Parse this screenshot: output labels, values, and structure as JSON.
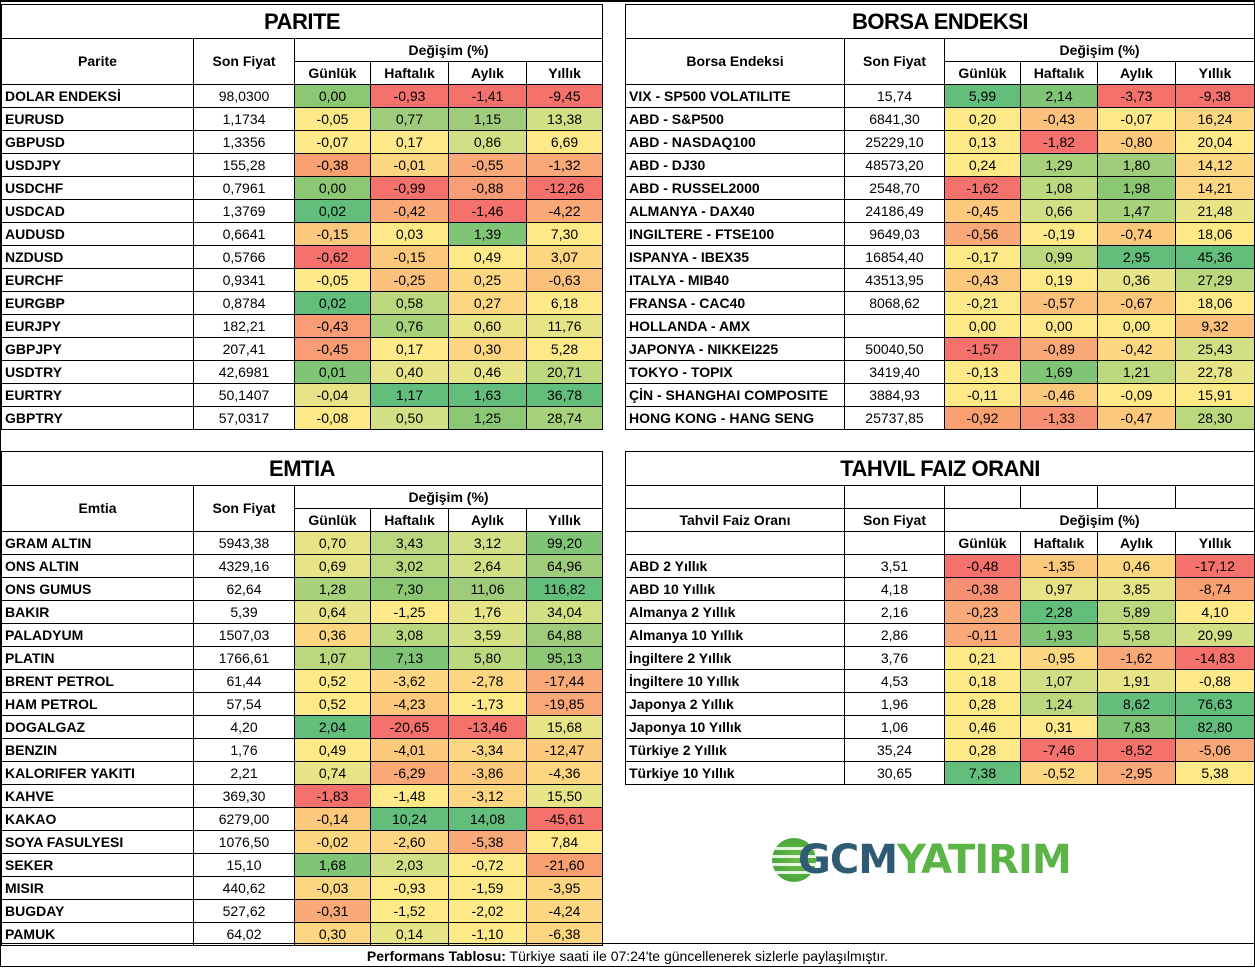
{
  "headers": {
    "son_fiyat": "Son Fiyat",
    "degisim": "Değişim (%)",
    "gunluk": "Günlük",
    "haftalik": "Haftalık",
    "aylik": "Aylık",
    "yillik": "Yıllık"
  },
  "parite": {
    "title": "PARITE",
    "col_name": "Parite",
    "rows": [
      {
        "name": "DOLAR ENDEKSİ",
        "price": "98,0300",
        "d": "0,00",
        "w": "-0,93",
        "m": "-1,41",
        "y": "-9,45",
        "c": [
          "#8cc874",
          "#f4716c",
          "#f4716c",
          "#f4716c"
        ]
      },
      {
        "name": "EURUSD",
        "price": "1,1734",
        "d": "-0,05",
        "w": "0,77",
        "m": "1,15",
        "y": "13,38",
        "c": [
          "#fde988",
          "#9fcc7a",
          "#9fcc7a",
          "#d3df84"
        ]
      },
      {
        "name": "GBPUSD",
        "price": "1,3356",
        "d": "-0,07",
        "w": "0,17",
        "m": "0,86",
        "y": "6,69",
        "c": [
          "#fde988",
          "#fde988",
          "#d3df84",
          "#fde988"
        ]
      },
      {
        "name": "USDJPY",
        "price": "155,28",
        "d": "-0,38",
        "w": "-0,01",
        "m": "-0,55",
        "y": "-1,32",
        "c": [
          "#f9a070",
          "#fcd681",
          "#f9a878",
          "#f9a878"
        ]
      },
      {
        "name": "USDCHF",
        "price": "0,7961",
        "d": "0,00",
        "w": "-0,99",
        "m": "-0,88",
        "y": "-12,26",
        "c": [
          "#8cc874",
          "#f4716c",
          "#f79c75",
          "#f4716c"
        ]
      },
      {
        "name": "USDCAD",
        "price": "1,3769",
        "d": "0,02",
        "w": "-0,42",
        "m": "-1,46",
        "y": "-4,22",
        "c": [
          "#63be7b",
          "#f9a878",
          "#f4716c",
          "#f9a878"
        ]
      },
      {
        "name": "AUDUSD",
        "price": "0,6641",
        "d": "-0,15",
        "w": "0,03",
        "m": "1,39",
        "y": "7,30",
        "c": [
          "#fbc87c",
          "#fde988",
          "#7fc575",
          "#fde988"
        ]
      },
      {
        "name": "NZDUSD",
        "price": "0,5766",
        "d": "-0,62",
        "w": "-0,15",
        "m": "0,49",
        "y": "3,07",
        "c": [
          "#f4716c",
          "#fbc87c",
          "#fde988",
          "#fcd681"
        ]
      },
      {
        "name": "EURCHF",
        "price": "0,9341",
        "d": "-0,05",
        "w": "-0,25",
        "m": "0,25",
        "y": "-0,63",
        "c": [
          "#fde988",
          "#fbc07b",
          "#fcd681",
          "#fbc07b"
        ]
      },
      {
        "name": "EURGBP",
        "price": "0,8784",
        "d": "0,02",
        "w": "0,58",
        "m": "0,27",
        "y": "6,18",
        "c": [
          "#63be7b",
          "#bcd87f",
          "#fcd681",
          "#fde988"
        ]
      },
      {
        "name": "EURJPY",
        "price": "182,21",
        "d": "-0,43",
        "w": "0,76",
        "m": "0,60",
        "y": "11,76",
        "c": [
          "#f79c75",
          "#a8d17b",
          "#e6e486",
          "#e6e486"
        ]
      },
      {
        "name": "GBPJPY",
        "price": "207,41",
        "d": "-0,45",
        "w": "0,17",
        "m": "0,30",
        "y": "5,28",
        "c": [
          "#f79c75",
          "#fde988",
          "#fcd681",
          "#fde988"
        ]
      },
      {
        "name": "USDTRY",
        "price": "42,6981",
        "d": "0,01",
        "w": "0,40",
        "m": "0,46",
        "y": "20,71",
        "c": [
          "#7fc575",
          "#e6e486",
          "#e6e486",
          "#bcd87f"
        ]
      },
      {
        "name": "EURTRY",
        "price": "50,1407",
        "d": "-0,04",
        "w": "1,17",
        "m": "1,63",
        "y": "36,78",
        "c": [
          "#e6e486",
          "#63be7b",
          "#63be7b",
          "#63be7b"
        ]
      },
      {
        "name": "GBPTRY",
        "price": "57,0317",
        "d": "-0,08",
        "w": "0,50",
        "m": "1,25",
        "y": "28,74",
        "c": [
          "#fde988",
          "#d3df84",
          "#8cc874",
          "#a8d17b"
        ]
      }
    ]
  },
  "borsa": {
    "title": "BORSA ENDEKSI",
    "col_name": "Borsa Endeksi",
    "rows": [
      {
        "name": "VIX  - SP500 VOLATILITE",
        "price": "15,74",
        "d": "5,99",
        "w": "2,14",
        "m": "-3,73",
        "y": "-9,38",
        "c": [
          "#63be7b",
          "#7fc575",
          "#f4716c",
          "#f4716c"
        ]
      },
      {
        "name": "ABD - S&P500",
        "price": "6841,30",
        "d": "0,20",
        "w": "-0,43",
        "m": "-0,07",
        "y": "16,24",
        "c": [
          "#fde988",
          "#fbc07b",
          "#fde988",
          "#fcd681"
        ]
      },
      {
        "name": "ABD - NASDAQ100",
        "price": "25229,10",
        "d": "0,13",
        "w": "-1,82",
        "m": "-0,80",
        "y": "20,04",
        "c": [
          "#fde988",
          "#f4716c",
          "#fbc87c",
          "#fde988"
        ]
      },
      {
        "name": "ABD - DJ30",
        "price": "48573,20",
        "d": "0,24",
        "w": "1,29",
        "m": "1,80",
        "y": "14,12",
        "c": [
          "#fde988",
          "#a8d17b",
          "#9fcc7a",
          "#fcd681"
        ]
      },
      {
        "name": "ABD - RUSSEL2000",
        "price": "2548,70",
        "d": "-1,62",
        "w": "1,08",
        "m": "1,98",
        "y": "14,21",
        "c": [
          "#f4716c",
          "#bcd87f",
          "#8cc874",
          "#fcd681"
        ]
      },
      {
        "name": "ALMANYA - DAX40",
        "price": "24186,49",
        "d": "-0,45",
        "w": "0,66",
        "m": "1,47",
        "y": "21,48",
        "c": [
          "#fbc87c",
          "#d3df84",
          "#a8d17b",
          "#e6e486"
        ]
      },
      {
        "name": "INGILTERE - FTSE100",
        "price": "9649,03",
        "d": "-0,56",
        "w": "-0,19",
        "m": "-0,74",
        "y": "18,06",
        "c": [
          "#f9a878",
          "#fde988",
          "#fbc87c",
          "#fde988"
        ]
      },
      {
        "name": "ISPANYA - IBEX35",
        "price": "16854,40",
        "d": "-0,17",
        "w": "0,99",
        "m": "2,95",
        "y": "45,36",
        "c": [
          "#fde988",
          "#bcd87f",
          "#63be7b",
          "#63be7b"
        ]
      },
      {
        "name": "ITALYA - MIB40",
        "price": "43513,95",
        "d": "-0,43",
        "w": "0,19",
        "m": "0,36",
        "y": "27,29",
        "c": [
          "#fbc87c",
          "#fde988",
          "#e6e486",
          "#bcd87f"
        ]
      },
      {
        "name": "FRANSA - CAC40",
        "price": "8068,62",
        "d": "-0,21",
        "w": "-0,57",
        "m": "-0,67",
        "y": "18,06",
        "c": [
          "#fde988",
          "#fbc07b",
          "#fbc87c",
          "#fde988"
        ]
      },
      {
        "name": "HOLLANDA - AMX",
        "price": "",
        "d": "0,00",
        "w": "0,00",
        "m": "0,00",
        "y": "9,32",
        "c": [
          "#fde988",
          "#fde988",
          "#fde988",
          "#fbc07b"
        ]
      },
      {
        "name": "JAPONYA - NIKKEI225",
        "price": "50040,50",
        "d": "-1,57",
        "w": "-0,89",
        "m": "-0,42",
        "y": "25,43",
        "c": [
          "#f4716c",
          "#f9a878",
          "#fcd681",
          "#d3df84"
        ]
      },
      {
        "name": "TOKYO - TOPIX",
        "price": "3419,40",
        "d": "-0,13",
        "w": "1,69",
        "m": "1,21",
        "y": "22,78",
        "c": [
          "#fde988",
          "#7fc575",
          "#bcd87f",
          "#e6e486"
        ]
      },
      {
        "name": "ÇİN - SHANGHAI COMPOSITE",
        "price": "3884,93",
        "d": "-0,11",
        "w": "-0,46",
        "m": "-0,09",
        "y": "15,91",
        "c": [
          "#fde988",
          "#fbc87c",
          "#fde988",
          "#fde988"
        ]
      },
      {
        "name": "HONG KONG - HANG SENG",
        "price": "25737,85",
        "d": "-0,92",
        "w": "-1,33",
        "m": "-0,47",
        "y": "28,30",
        "c": [
          "#f9a070",
          "#f79073",
          "#fbc87c",
          "#bcd87f"
        ]
      }
    ]
  },
  "emtia": {
    "title": "EMTIA",
    "col_name": "Emtia",
    "rows": [
      {
        "name": "GRAM ALTIN",
        "price": "5943,38",
        "d": "0,70",
        "w": "3,43",
        "m": "3,12",
        "y": "99,20",
        "c": [
          "#e6e486",
          "#bcd87f",
          "#d3df84",
          "#7fc575"
        ]
      },
      {
        "name": "ONS ALTIN",
        "price": "4329,16",
        "d": "0,69",
        "w": "3,02",
        "m": "2,64",
        "y": "64,96",
        "c": [
          "#e6e486",
          "#bcd87f",
          "#d3df84",
          "#9fcc7a"
        ]
      },
      {
        "name": "ONS GUMUS",
        "price": "62,64",
        "d": "1,28",
        "w": "7,30",
        "m": "11,06",
        "y": "116,82",
        "c": [
          "#a8d17b",
          "#8cc874",
          "#9fcc7a",
          "#63be7b"
        ]
      },
      {
        "name": "BAKIR",
        "price": "5,39",
        "d": "0,64",
        "w": "-1,25",
        "m": "1,76",
        "y": "34,04",
        "c": [
          "#e6e486",
          "#fde988",
          "#e6e486",
          "#d3df84"
        ]
      },
      {
        "name": "PALADYUM",
        "price": "1507,03",
        "d": "0,36",
        "w": "3,08",
        "m": "3,59",
        "y": "64,88",
        "c": [
          "#fcd681",
          "#bcd87f",
          "#d3df84",
          "#9fcc7a"
        ]
      },
      {
        "name": "PLATIN",
        "price": "1766,61",
        "d": "1,07",
        "w": "7,13",
        "m": "5,80",
        "y": "95,13",
        "c": [
          "#bcd87f",
          "#7fc575",
          "#bcd87f",
          "#8cc874"
        ]
      },
      {
        "name": "BRENT PETROL",
        "price": "61,44",
        "d": "0,52",
        "w": "-3,62",
        "m": "-2,78",
        "y": "-17,44",
        "c": [
          "#fde988",
          "#fcd681",
          "#fcd681",
          "#f9a878"
        ]
      },
      {
        "name": "HAM PETROL",
        "price": "57,54",
        "d": "0,52",
        "w": "-4,23",
        "m": "-1,73",
        "y": "-19,85",
        "c": [
          "#fde988",
          "#fbc87c",
          "#fde988",
          "#f9a878"
        ]
      },
      {
        "name": "DOGALGAZ",
        "price": "4,20",
        "d": "2,04",
        "w": "-20,65",
        "m": "-13,46",
        "y": "15,68",
        "c": [
          "#63be7b",
          "#f4716c",
          "#f4716c",
          "#e6e486"
        ]
      },
      {
        "name": "BENZIN",
        "price": "1,76",
        "d": "0,49",
        "w": "-4,01",
        "m": "-3,34",
        "y": "-12,47",
        "c": [
          "#fde988",
          "#fbc87c",
          "#fcd681",
          "#fbc87c"
        ]
      },
      {
        "name": "KALORIFER YAKITI",
        "price": "2,21",
        "d": "0,74",
        "w": "-6,29",
        "m": "-3,86",
        "y": "-4,36",
        "c": [
          "#e6e486",
          "#f9a878",
          "#fbc87c",
          "#fcd681"
        ]
      },
      {
        "name": "KAHVE",
        "price": "369,30",
        "d": "-1,83",
        "w": "-1,48",
        "m": "-3,12",
        "y": "15,50",
        "c": [
          "#f4716c",
          "#fde988",
          "#fcd681",
          "#e6e486"
        ]
      },
      {
        "name": "KAKAO",
        "price": "6279,00",
        "d": "-0,14",
        "w": "10,24",
        "m": "14,08",
        "y": "-45,61",
        "c": [
          "#fbc87c",
          "#63be7b",
          "#63be7b",
          "#f4716c"
        ]
      },
      {
        "name": "SOYA FASULYESI",
        "price": "1076,50",
        "d": "-0,02",
        "w": "-2,60",
        "m": "-5,38",
        "y": "7,84",
        "c": [
          "#fcd681",
          "#fcd681",
          "#f9a878",
          "#fde988"
        ]
      },
      {
        "name": "SEKER",
        "price": "15,10",
        "d": "1,68",
        "w": "2,03",
        "m": "-0,72",
        "y": "-21,60",
        "c": [
          "#7fc575",
          "#d3df84",
          "#fde988",
          "#f9a070"
        ]
      },
      {
        "name": "MISIR",
        "price": "440,62",
        "d": "-0,03",
        "w": "-0,93",
        "m": "-1,59",
        "y": "-3,95",
        "c": [
          "#fcd681",
          "#fde988",
          "#fde988",
          "#fcd681"
        ]
      },
      {
        "name": "BUGDAY",
        "price": "527,62",
        "d": "-0,31",
        "w": "-1,52",
        "m": "-2,02",
        "y": "-4,24",
        "c": [
          "#f9a878",
          "#fde988",
          "#fde988",
          "#fcd681"
        ]
      },
      {
        "name": "PAMUK",
        "price": "64,02",
        "d": "0,30",
        "w": "0,14",
        "m": "-1,10",
        "y": "-6,38",
        "c": [
          "#fcd681",
          "#e6e486",
          "#fde988",
          "#fcd681"
        ]
      }
    ]
  },
  "tahvil": {
    "title": "TAHVIL FAIZ ORANI",
    "col_name": "Tahvil Faiz Oranı",
    "rows": [
      {
        "name": "ABD 2 Yıllık",
        "price": "3,51",
        "d": "-0,48",
        "w": "-1,35",
        "m": "0,46",
        "y": "-17,12",
        "c": [
          "#f4716c",
          "#fbc87c",
          "#fcd681",
          "#f4716c"
        ]
      },
      {
        "name": "ABD 10 Yıllık",
        "price": "4,18",
        "d": "-0,38",
        "w": "0,97",
        "m": "3,85",
        "y": "-8,74",
        "c": [
          "#f79073",
          "#e6e486",
          "#e6e486",
          "#f9a070"
        ]
      },
      {
        "name": "Almanya 2 Yıllık",
        "price": "2,16",
        "d": "-0,23",
        "w": "2,28",
        "m": "5,89",
        "y": "4,10",
        "c": [
          "#f9a878",
          "#63be7b",
          "#bcd87f",
          "#fde988"
        ]
      },
      {
        "name": "Almanya 10 Yıllık",
        "price": "2,86",
        "d": "-0,11",
        "w": "1,93",
        "m": "5,58",
        "y": "20,99",
        "c": [
          "#f9a878",
          "#7fc575",
          "#bcd87f",
          "#d3df84"
        ]
      },
      {
        "name": "İngiltere 2 Yıllık",
        "price": "3,76",
        "d": "0,21",
        "w": "-0,95",
        "m": "-1,62",
        "y": "-14,83",
        "c": [
          "#fde988",
          "#fcd681",
          "#f9a878",
          "#f4716c"
        ]
      },
      {
        "name": "İngiltere 10 Yıllık",
        "price": "4,53",
        "d": "0,18",
        "w": "1,07",
        "m": "1,91",
        "y": "-0,88",
        "c": [
          "#fde988",
          "#d3df84",
          "#e6e486",
          "#fde988"
        ]
      },
      {
        "name": "Japonya 2 Yıllık",
        "price": "1,96",
        "d": "0,28",
        "w": "1,24",
        "m": "8,62",
        "y": "76,63",
        "c": [
          "#fde988",
          "#bcd87f",
          "#63be7b",
          "#63be7b"
        ]
      },
      {
        "name": "Japonya 10 Yıllık",
        "price": "1,06",
        "d": "0,46",
        "w": "0,31",
        "m": "7,83",
        "y": "82,80",
        "c": [
          "#fde988",
          "#fde988",
          "#7fc575",
          "#63be7b"
        ]
      },
      {
        "name": "Türkiye 2 Yıllık",
        "price": "35,24",
        "d": "0,28",
        "w": "-7,46",
        "m": "-8,52",
        "y": "-5,06",
        "c": [
          "#fde988",
          "#f4716c",
          "#f4716c",
          "#f9a878"
        ]
      },
      {
        "name": "Türkiye 10 Yıllık",
        "price": "30,65",
        "d": "7,38",
        "w": "-0,52",
        "m": "-2,95",
        "y": "5,38",
        "c": [
          "#63be7b",
          "#fcd681",
          "#f9a878",
          "#fde988"
        ]
      }
    ]
  },
  "logo": {
    "part1": "GCM",
    "part2": "YATIRIM"
  },
  "footer": {
    "bold": "Performans Tablosu:",
    "text": " Türkiye saati ile 07:24'te güncellenerek sizlerle paylaşılmıştır."
  }
}
